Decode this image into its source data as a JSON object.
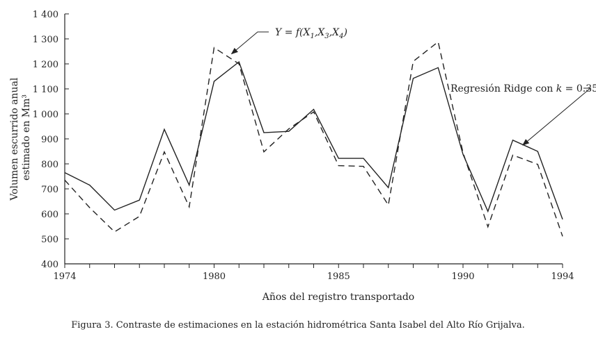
{
  "chart_data": {
    "type": "line",
    "x": [
      1974,
      1975,
      1976,
      1977,
      1978,
      1979,
      1980,
      1981,
      1982,
      1983,
      1984,
      1985,
      1986,
      1987,
      1988,
      1989,
      1990,
      1991,
      1992,
      1993,
      1994
    ],
    "series": [
      {
        "name": "Regresión Ridge con k = 0.35",
        "style": "solid",
        "values": [
          765,
          715,
          615,
          655,
          938,
          715,
          1130,
          1208,
          925,
          930,
          1018,
          822,
          822,
          705,
          1142,
          1185,
          838,
          610,
          895,
          850,
          578
        ]
      },
      {
        "name": "Y = f(X1,X3,X4)",
        "style": "dashed",
        "values": [
          735,
          625,
          528,
          590,
          848,
          628,
          1265,
          1200,
          848,
          940,
          1008,
          793,
          790,
          635,
          1210,
          1288,
          845,
          548,
          835,
          798,
          510
        ]
      }
    ],
    "xlabel": "Años del registro transportado",
    "ylabel_lines": [
      "Volumen escurrido anual",
      "estimado en Mm³"
    ],
    "xlim": [
      1974,
      1994
    ],
    "ylim": [
      400,
      1400
    ],
    "x_ticks": [
      1974,
      1980,
      1985,
      1990,
      1994
    ],
    "y_ticks": [
      400,
      500,
      600,
      700,
      800,
      900,
      1000,
      1100,
      1200,
      1300,
      1400
    ],
    "y_tick_labels": [
      "400",
      "500",
      "600",
      "700",
      "800",
      "900",
      "1 000",
      "1 100",
      "1 200",
      "1 300",
      "1 400"
    ],
    "annotations": {
      "dashed": "Y = f(X1,X3,X4)",
      "solid": "Regresión Ridge con k = 0.35"
    },
    "grid": false,
    "line_color": "#222222"
  },
  "caption": "Figura 3. Contraste de estimaciones en la estación hidrométrica Santa Isabel del Alto Río Grijalva."
}
